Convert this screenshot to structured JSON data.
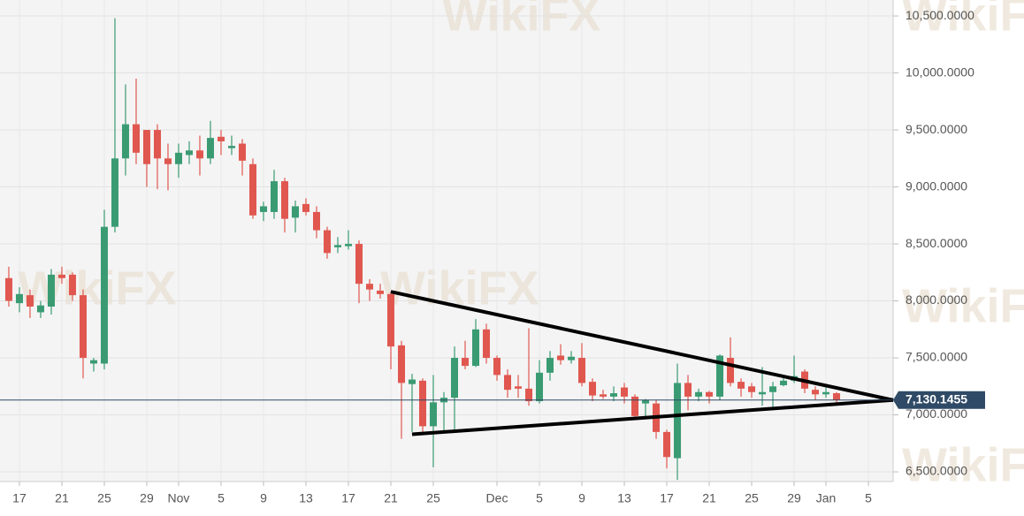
{
  "chart_data": {
    "type": "candlestick",
    "watermark": "WikiFX",
    "up_color": "#3a9b73",
    "down_color": "#e0574f",
    "xlim": [
      -1.83,
      82.33
    ],
    "ylim": [
      6415,
      10640
    ],
    "yticks": [
      {
        "value": 6500,
        "label": "6,500.0000"
      },
      {
        "value": 7000,
        "label": "7,000.0000"
      },
      {
        "value": 7500,
        "label": "7,500.0000"
      },
      {
        "value": 8000,
        "label": "8,000.0000"
      },
      {
        "value": 8500,
        "label": "8,500.0000"
      },
      {
        "value": 9000,
        "label": "9,000.0000"
      },
      {
        "value": 9500,
        "label": "9,500.0000"
      },
      {
        "value": 10000,
        "label": "10,000.0000"
      },
      {
        "value": 10500,
        "label": "10,500.0000"
      }
    ],
    "xticks": [
      {
        "value": 0,
        "label": "17"
      },
      {
        "value": 4,
        "label": "21"
      },
      {
        "value": 8,
        "label": "25"
      },
      {
        "value": 12,
        "label": "29"
      },
      {
        "value": 15,
        "label": "Nov"
      },
      {
        "value": 19,
        "label": "5"
      },
      {
        "value": 23,
        "label": "9"
      },
      {
        "value": 27,
        "label": "13"
      },
      {
        "value": 31,
        "label": "17"
      },
      {
        "value": 35,
        "label": "21"
      },
      {
        "value": 39,
        "label": "25"
      },
      {
        "value": 45,
        "label": "Dec"
      },
      {
        "value": 49,
        "label": "5"
      },
      {
        "value": 53,
        "label": "9"
      },
      {
        "value": 57,
        "label": "13"
      },
      {
        "value": 61,
        "label": "17"
      },
      {
        "value": 65,
        "label": "21"
      },
      {
        "value": 69,
        "label": "25"
      },
      {
        "value": 73,
        "label": "29"
      },
      {
        "value": 76,
        "label": "Jan"
      },
      {
        "value": 80,
        "label": "5"
      }
    ],
    "x": [
      -1,
      0,
      1,
      2,
      3,
      4,
      5,
      6,
      7,
      8,
      9,
      10,
      11,
      12,
      13,
      14,
      15,
      16,
      17,
      18,
      19,
      20,
      21,
      22,
      23,
      24,
      25,
      26,
      27,
      28,
      29,
      30,
      31,
      32,
      33,
      34,
      35,
      36,
      37,
      38,
      39,
      40,
      41,
      42,
      43,
      44,
      45,
      46,
      47,
      48,
      49,
      50,
      51,
      52,
      53,
      54,
      55,
      56,
      57,
      58,
      59,
      60,
      61,
      62,
      63,
      64,
      65,
      66,
      67,
      68,
      69,
      70,
      71,
      72,
      73,
      74,
      75,
      76,
      77
    ],
    "open": [
      8200,
      7980,
      8050,
      7900,
      7950,
      8230,
      8230,
      8050,
      7450,
      7450,
      8650,
      9250,
      9550,
      9500,
      9500,
      9250,
      9200,
      9280,
      9320,
      9250,
      9440,
      9340,
      9380,
      9200,
      8780,
      8780,
      9050,
      8730,
      8850,
      8780,
      8620,
      8470,
      8480,
      8500,
      8150,
      8090,
      8060,
      7610,
      7270,
      7300,
      6900,
      7110,
      7150,
      7500,
      7430,
      7750,
      7500,
      7350,
      7250,
      7230,
      7120,
      7370,
      7520,
      7480,
      7500,
      7290,
      7180,
      7160,
      7240,
      7160,
      7100,
      7100,
      6850,
      6620,
      7280,
      7160,
      7200,
      7160,
      7500,
      7290,
      7250,
      7180,
      7200,
      7260,
      7300,
      7380,
      7220,
      7180,
      7190
    ],
    "high": [
      8300,
      8120,
      8100,
      8000,
      8280,
      8300,
      8250,
      8100,
      7500,
      8800,
      10480,
      9900,
      9950,
      9500,
      9550,
      9380,
      9380,
      9400,
      9450,
      9580,
      9500,
      9450,
      9420,
      9250,
      8870,
      9150,
      9080,
      8880,
      8900,
      8830,
      8650,
      8560,
      8620,
      8530,
      8190,
      8150,
      8080,
      7650,
      7360,
      7320,
      7350,
      7200,
      7600,
      7650,
      7840,
      7800,
      7520,
      7400,
      7350,
      7760,
      7480,
      7560,
      7620,
      7560,
      7630,
      7320,
      7220,
      7250,
      7280,
      7180,
      7140,
      7130,
      6870,
      7450,
      7350,
      7230,
      7210,
      7530,
      7680,
      7320,
      7280,
      7420,
      7290,
      7340,
      7520,
      7400,
      7250,
      7250,
      7200
    ],
    "low": [
      7950,
      7900,
      7850,
      7850,
      7880,
      8150,
      8000,
      7320,
      7380,
      7400,
      8600,
      9100,
      9200,
      9000,
      8980,
      8970,
      9080,
      9200,
      9100,
      9200,
      9280,
      9280,
      9100,
      8720,
      8700,
      8720,
      8600,
      8600,
      8750,
      8550,
      8370,
      8420,
      8450,
      7980,
      8000,
      8020,
      7400,
      6790,
      6850,
      6830,
      6540,
      6850,
      6850,
      7400,
      7420,
      7450,
      7300,
      7150,
      7150,
      7080,
      7100,
      7300,
      7440,
      7450,
      7250,
      7120,
      7140,
      7120,
      7100,
      6960,
      6970,
      6790,
      6530,
      6430,
      7040,
      7120,
      7100,
      7130,
      7250,
      7160,
      7150,
      7080,
      7050,
      7250,
      7280,
      7190,
      7130,
      7150,
      7100
    ],
    "close": [
      8000,
      8060,
      7950,
      7960,
      8230,
      8200,
      8050,
      7500,
      7480,
      8650,
      9250,
      9550,
      9300,
      9200,
      9250,
      9200,
      9300,
      9320,
      9250,
      9430,
      9400,
      9360,
      9230,
      8750,
      8830,
      9050,
      8720,
      8830,
      8780,
      8620,
      8420,
      8490,
      8500,
      8150,
      8100,
      8060,
      7600,
      7280,
      7310,
      6900,
      7110,
      7150,
      7500,
      7430,
      7750,
      7500,
      7350,
      7220,
      7230,
      7120,
      7370,
      7500,
      7480,
      7510,
      7280,
      7170,
      7160,
      7190,
      7160,
      6990,
      7130,
      6850,
      6630,
      7280,
      7160,
      7200,
      7160,
      7520,
      7280,
      7230,
      7200,
      7200,
      7250,
      7300,
      7340,
      7230,
      7180,
      7200,
      7130
    ],
    "trendlines": [
      {
        "x": [
          35,
          82.33
        ],
        "y": [
          8080,
          7130
        ]
      },
      {
        "x": [
          37,
          82.33
        ],
        "y": [
          6830,
          7130
        ]
      }
    ],
    "current_price": {
      "value": 7130.1455,
      "label": "7,130.1455"
    }
  }
}
